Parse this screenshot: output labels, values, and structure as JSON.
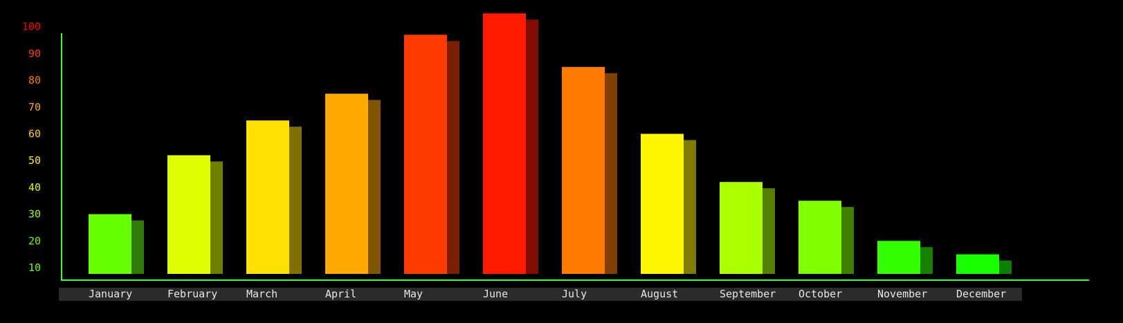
{
  "chart_data": {
    "type": "bar",
    "title": "",
    "xlabel": "",
    "ylabel": "",
    "categories": [
      "January",
      "February",
      "March",
      "April",
      "May",
      "June",
      "July",
      "August",
      "September",
      "October",
      "November",
      "December"
    ],
    "values": [
      30,
      52,
      65,
      75,
      97,
      105,
      85,
      60,
      42,
      35,
      20,
      15
    ],
    "ylim": [
      10,
      100
    ],
    "yticks": [
      10,
      20,
      30,
      40,
      50,
      60,
      70,
      80,
      90,
      100
    ],
    "grid": false,
    "legend": "none",
    "bar_colors": [
      "#66ff00",
      "#ddff00",
      "#ffe100",
      "#ffaa00",
      "#ff3b00",
      "#ff1a00",
      "#ff7b00",
      "#fff700",
      "#aaff00",
      "#7fff00",
      "#33ff00",
      "#1aff00"
    ],
    "shadow_colors": [
      "#2f7a0b",
      "#6f7f00",
      "#7f7000",
      "#805500",
      "#7a1f00",
      "#800d00",
      "#804000",
      "#807c00",
      "#557f00",
      "#408000",
      "#1a8000",
      "#0d8000"
    ],
    "ytick_colors": [
      "#66ff00",
      "#66ff00",
      "#99ff00",
      "#ccff00",
      "#ffee00",
      "#ffcc00",
      "#ffaa00",
      "#ff7700",
      "#ff3b00",
      "#ff0000"
    ],
    "axis_color": "#33ff33",
    "xaxis_band_color": "#2b2b2b"
  }
}
